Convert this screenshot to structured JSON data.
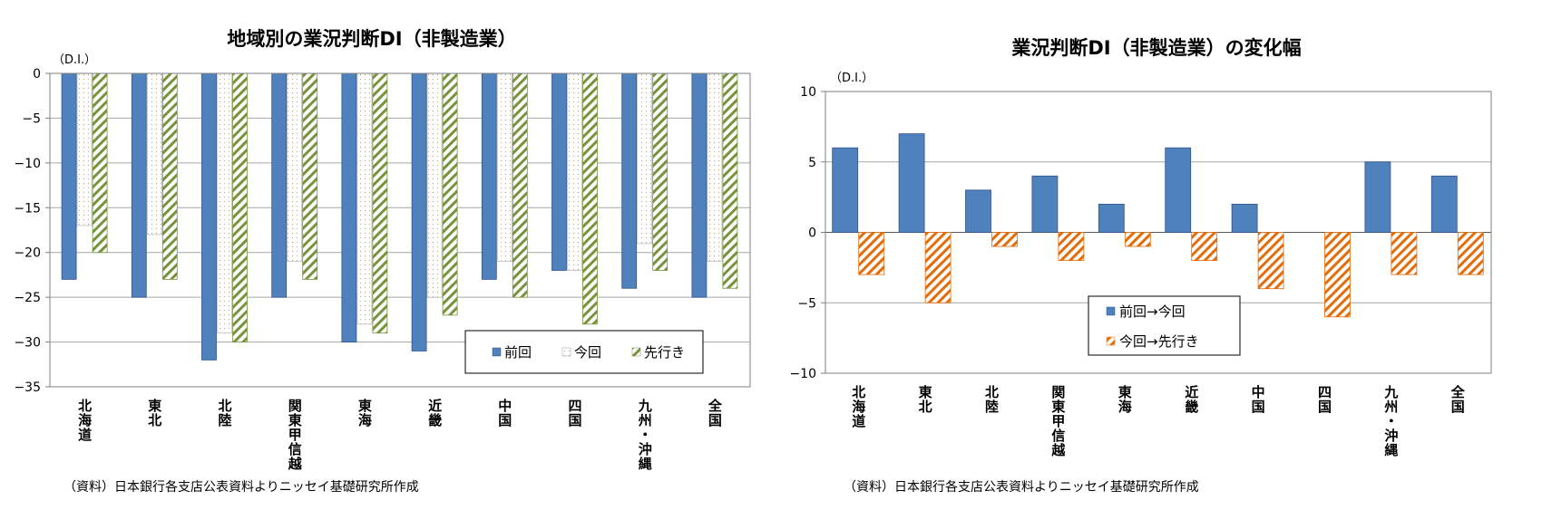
{
  "chart_data": [
    {
      "type": "bar",
      "title": "地域別の業況判断DI（非製造業）",
      "unit_label": "（D.I.）",
      "ylim": [
        -35,
        0
      ],
      "yticks": [
        0,
        -5,
        -10,
        -15,
        -20,
        -25,
        -30,
        -35
      ],
      "categories": [
        "北海道",
        "東北",
        "北陸",
        "関東甲信越",
        "東海",
        "近畿",
        "中国",
        "四国",
        "九州・沖縄",
        "全国"
      ],
      "series": [
        {
          "name": "前回",
          "pattern": "solid",
          "values": [
            -23,
            -25,
            -32,
            -25,
            -30,
            -31,
            -23,
            -22,
            -24,
            -25
          ]
        },
        {
          "name": "今回",
          "pattern": "dots",
          "values": [
            -17,
            -18,
            -29,
            -21,
            -28,
            -25,
            -21,
            -22,
            -19,
            -21
          ]
        },
        {
          "name": "先行き",
          "pattern": "hatch",
          "values": [
            -20,
            -23,
            -30,
            -23,
            -29,
            -27,
            -25,
            -28,
            -22,
            -24
          ]
        }
      ],
      "legend_position": "bottom-right",
      "source": "（資料）日本銀行各支店公表資料よりニッセイ基礎研究所作成"
    },
    {
      "type": "bar",
      "title": "業況判断DI（非製造業）の変化幅",
      "unit_label": "（D.I.）",
      "ylim": [
        -10,
        10
      ],
      "yticks": [
        10,
        5,
        0,
        -5,
        -10
      ],
      "categories": [
        "北海道",
        "東北",
        "北陸",
        "関東甲信越",
        "東海",
        "近畿",
        "中国",
        "四国",
        "九州・沖縄",
        "全国"
      ],
      "series": [
        {
          "name": "前回→今回",
          "pattern": "solid",
          "values": [
            6,
            7,
            3,
            4,
            2,
            6,
            2,
            0,
            5,
            4
          ]
        },
        {
          "name": "今回→先行き",
          "pattern": "hatch",
          "values": [
            -3,
            -5,
            -1,
            -2,
            -1,
            -2,
            -4,
            -6,
            -3,
            -3
          ]
        }
      ],
      "legend_position": "lower-middle",
      "source": "（資料）日本銀行各支店公表資料よりニッセイ基礎研究所作成"
    }
  ],
  "colors": {
    "blue": "#4f81bd",
    "blue_border": "#2f528f",
    "green_hatch": "#77933c",
    "orange_hatch": "#e46c0a",
    "dot_color": "#c8a27a",
    "grid": "#a6a6a6",
    "axis": "#7f7f7f"
  }
}
